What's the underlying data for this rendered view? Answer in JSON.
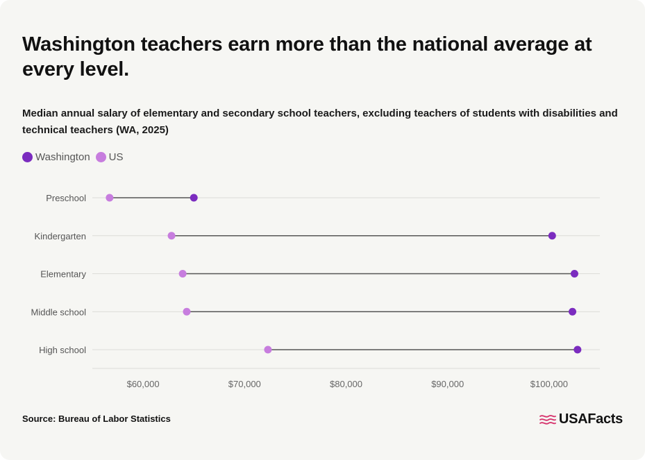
{
  "title": "Washington teachers earn more than the national average at every level.",
  "subtitle": "Median annual salary of elementary and secondary school teachers, excluding teachers of students with disabilities and technical teachers (WA, 2025)",
  "source": "Source: Bureau of Labor Statistics",
  "brand": "USAFacts",
  "colors": {
    "washington": "#7b2cbf",
    "us": "#c77dde",
    "connector": "#555555",
    "grid": "#dcdcd8",
    "brand_mark": "#d6336c"
  },
  "chart_data": {
    "type": "dot-range",
    "series": [
      {
        "name": "Washington",
        "values": [
          65000,
          100300,
          102500,
          102300,
          102800
        ]
      },
      {
        "name": "US",
        "values": [
          56700,
          62800,
          63900,
          64300,
          72300
        ]
      }
    ],
    "categories": [
      "Preschool",
      "Kindergarten",
      "Elementary",
      "Middle school",
      "High school"
    ],
    "x_ticks": [
      60000,
      70000,
      80000,
      90000,
      100000
    ],
    "x_tick_labels": [
      "$60,000",
      "$70,000",
      "$80,000",
      "$90,000",
      "$100,000"
    ],
    "xlim": [
      55000,
      105000
    ],
    "grid": true,
    "legend": "top-left"
  }
}
